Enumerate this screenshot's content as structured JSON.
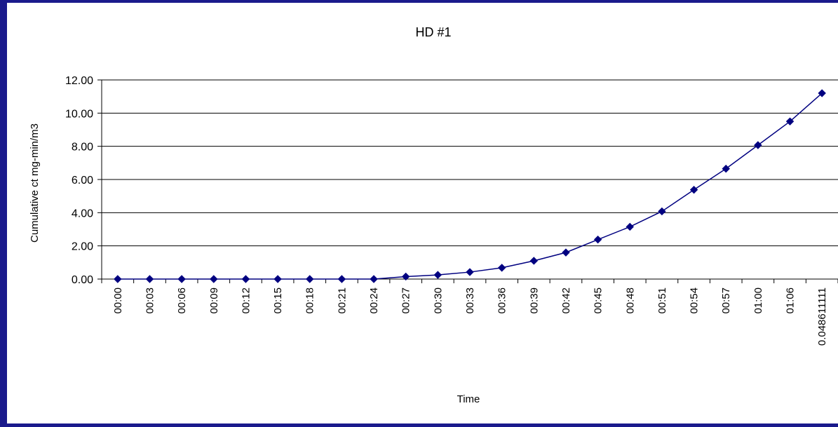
{
  "chart_data": {
    "type": "line",
    "title": "HD #1",
    "xlabel": "Time",
    "ylabel": "Cumulative ct mg-min/m3",
    "ylim": [
      0,
      12
    ],
    "yticks": [
      "0.00",
      "2.00",
      "4.00",
      "6.00",
      "8.00",
      "10.00",
      "12.00"
    ],
    "grid": true,
    "legend": "none",
    "categories": [
      "00:00",
      "00:03",
      "00:06",
      "00:09",
      "00:12",
      "00:15",
      "00:18",
      "00:21",
      "00:24",
      "00:27",
      "00:30",
      "00:33",
      "00:36",
      "00:39",
      "00:42",
      "00:45",
      "00:48",
      "00:51",
      "00:54",
      "00:57",
      "01:00",
      "01:06",
      "0.048611111"
    ],
    "series": [
      {
        "values": [
          0,
          0,
          0,
          0,
          0,
          0,
          0,
          0,
          0,
          0.15,
          0.25,
          0.42,
          0.68,
          1.1,
          1.6,
          2.38,
          3.15,
          4.08,
          5.38,
          6.65,
          8.07,
          9.5,
          11.2
        ],
        "color": "#000080"
      }
    ]
  }
}
